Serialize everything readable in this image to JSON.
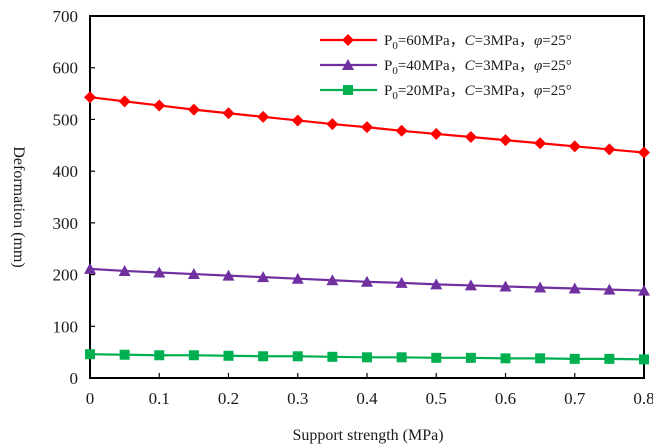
{
  "chart_data": {
    "type": "line",
    "title": "",
    "xlabel": "Support strength (MPa)",
    "ylabel": "Deformation (mm)",
    "xlim": [
      0,
      0.8
    ],
    "ylim": [
      0,
      700
    ],
    "x_ticks": [
      "0",
      "0.1",
      "0.2",
      "0.3",
      "0.4",
      "0.5",
      "0.6",
      "0.7",
      "0.8"
    ],
    "y_ticks": [
      "0",
      "100",
      "200",
      "300",
      "400",
      "500",
      "600",
      "700"
    ],
    "grid": false,
    "legend_position": "top-right",
    "x": [
      0,
      0.05,
      0.1,
      0.15,
      0.2,
      0.25,
      0.3,
      0.35,
      0.4,
      0.45,
      0.5,
      0.55,
      0.6,
      0.65,
      0.7,
      0.75,
      0.8
    ],
    "series": [
      {
        "legend": {
          "p": "P",
          "sub": "0",
          "p_value": "=60MPa，",
          "c": "C",
          "c_value": "=3MPa，",
          "phi": "φ",
          "phi_value": "=25°"
        },
        "color": "#ff0000",
        "marker": "diamond",
        "values": [
          543,
          535,
          527,
          519,
          512,
          505,
          498,
          491,
          485,
          478,
          472,
          466,
          460,
          454,
          448,
          442,
          436
        ]
      },
      {
        "legend": {
          "p": "P",
          "sub": "0",
          "p_value": "=40MPa，",
          "c": "C",
          "c_value": "=3MPa，",
          "phi": "φ",
          "phi_value": "=25°"
        },
        "color": "#7030a0",
        "marker": "triangle",
        "values": [
          211,
          207,
          204,
          201,
          198,
          195,
          192,
          189,
          186,
          184,
          181,
          179,
          177,
          175,
          173,
          171,
          169
        ]
      },
      {
        "legend": {
          "p": "P",
          "sub": "0",
          "p_value": "=20MPa，",
          "c": "C",
          "c_value": "=3MPa，",
          "phi": "φ",
          "phi_value": "=25°"
        },
        "color": "#00b050",
        "marker": "square",
        "values": [
          46,
          45,
          44,
          44,
          43,
          42,
          42,
          41,
          40,
          40,
          39,
          39,
          38,
          38,
          37,
          37,
          36
        ]
      }
    ]
  }
}
